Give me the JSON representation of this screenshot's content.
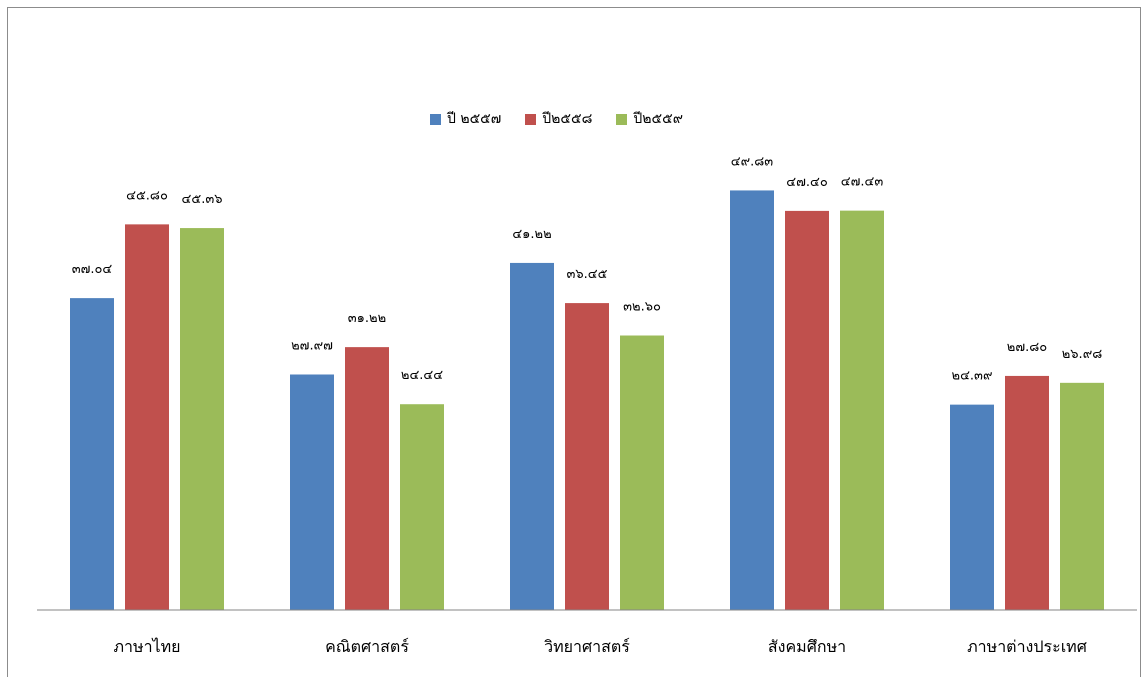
{
  "chart_data": {
    "type": "bar",
    "title": "",
    "xlabel": "",
    "ylabel": "",
    "ylim": [
      0,
      52
    ],
    "grid": false,
    "legend_placement": "top",
    "categories": [
      "ภาษาไทย",
      "คณิตศาสตร์",
      "วิทยาศาสตร์",
      "สังคมศึกษา",
      "ภาษาต่างประเทศ"
    ],
    "series": [
      {
        "name": "ปี ๒๕๕๗",
        "color": "#4f81bd",
        "values": [
          37.04,
          27.97,
          41.22,
          49.83,
          24.39
        ],
        "labels": [
          "๓๗.๐๔",
          "๒๗.๙๗",
          "๔๑.๒๒",
          "๔๙.๘๓",
          "๒๔.๓๙"
        ]
      },
      {
        "name": "ปี๒๕๕๘",
        "color": "#c0504d",
        "values": [
          45.8,
          31.22,
          36.45,
          47.4,
          27.8
        ],
        "labels": [
          "๔๕.๘๐",
          "๓๑.๒๒",
          "๓๖.๔๕",
          "๔๗.๔๐",
          "๒๗.๘๐"
        ]
      },
      {
        "name": "ปี๒๕๕๙",
        "color": "#9bbb59",
        "values": [
          45.36,
          24.44,
          32.6,
          47.43,
          26.98
        ],
        "labels": [
          "๔๕.๓๖",
          "๒๔.๔๔",
          "๓๒.๖๐",
          "๔๗.๔๓",
          "๒๖.๙๘"
        ]
      }
    ]
  }
}
